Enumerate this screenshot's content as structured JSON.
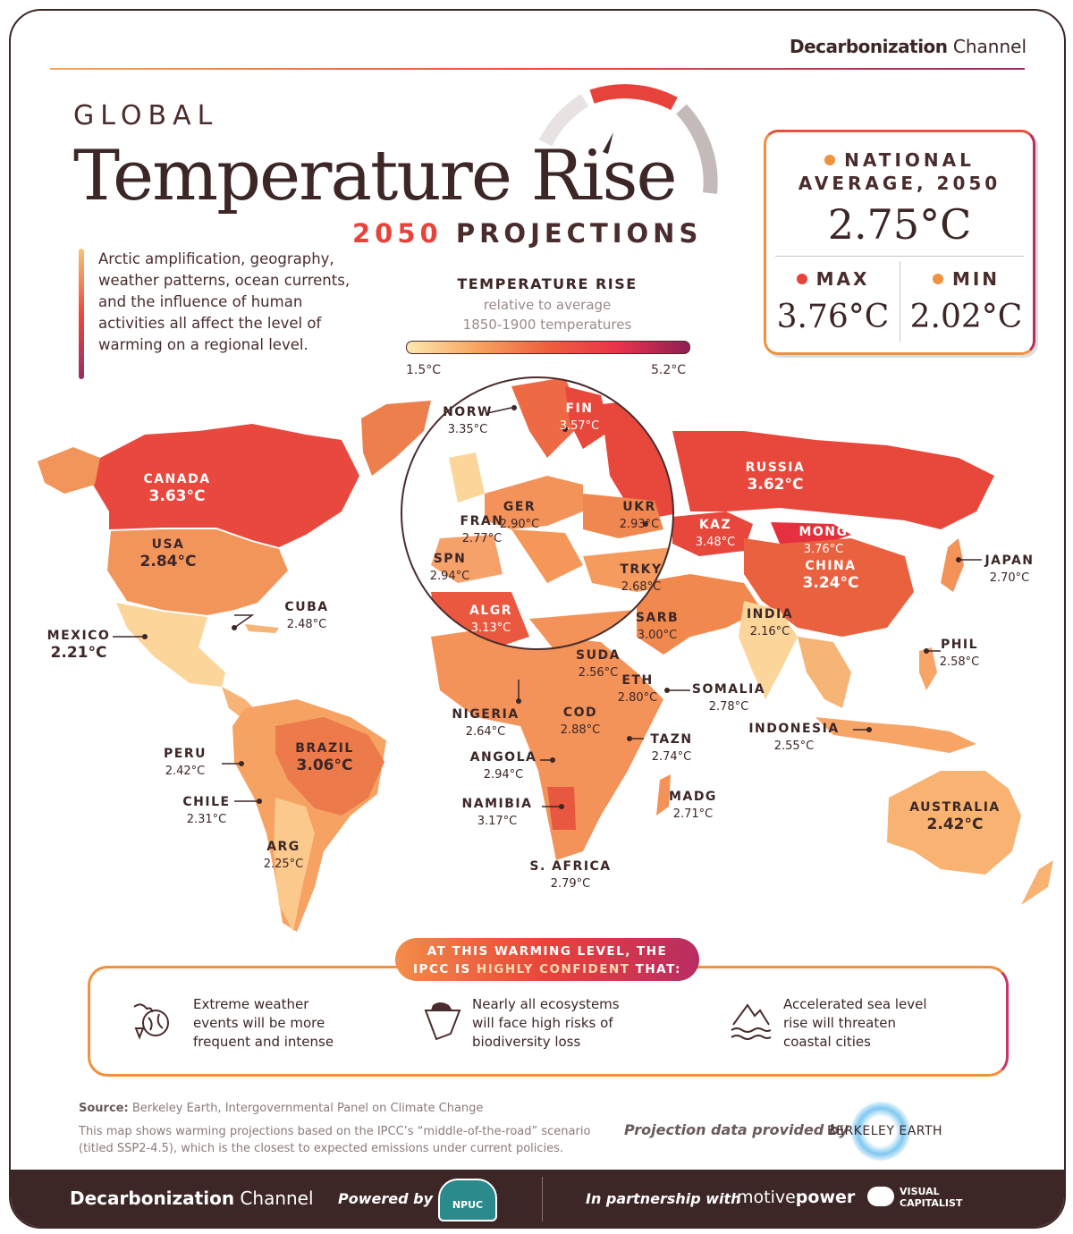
{
  "header": {
    "brand_bold": "Decarbonization",
    "brand_light": "Channel",
    "title_small": "GLOBAL",
    "title_main": "Temperature Rise",
    "subtitle_year": "2050",
    "subtitle_rest": "PROJECTIONS"
  },
  "intro": "Arctic amplification, geography, weather patterns, ocean currents, and the influence of human activities all affect the level of warming on a regional level.",
  "legend": {
    "title": "TEMPERATURE RISE",
    "subtitle_1": "relative to average",
    "subtitle_2": "1850-1900 temperatures",
    "min_label": "1.5°C",
    "max_label": "5.2°C",
    "scale_min": 1.5,
    "scale_max": 5.2,
    "colors": [
      "#fde8b0",
      "#f7a45f",
      "#ee5f3d",
      "#e8334a",
      "#8e1f55"
    ]
  },
  "stats": {
    "avg_label": "NATIONAL AVERAGE, 2050",
    "avg_value": "2.75°C",
    "max_label": "MAX",
    "max_value": "3.76°C",
    "min_label": "MIN",
    "min_value": "2.02°C",
    "avg_dot_color": "#f0913f",
    "max_dot_color": "#e8433a",
    "min_dot_color": "#f0913f"
  },
  "countries": [
    {
      "key": "canada",
      "name": "CANADA",
      "value": "3.63°C"
    },
    {
      "key": "usa",
      "name": "USA",
      "value": "2.84°C"
    },
    {
      "key": "mexico",
      "name": "MEXICO",
      "value": "2.21°C"
    },
    {
      "key": "cuba",
      "name": "CUBA",
      "value": "2.48°C"
    },
    {
      "key": "peru",
      "name": "PERU",
      "value": "2.42°C"
    },
    {
      "key": "brazil",
      "name": "BRAZIL",
      "value": "3.06°C"
    },
    {
      "key": "chile",
      "name": "CHILE",
      "value": "2.31°C"
    },
    {
      "key": "arg",
      "name": "ARG",
      "value": "2.25°C"
    },
    {
      "key": "norw",
      "name": "NORW",
      "value": "3.35°C"
    },
    {
      "key": "fin",
      "name": "FIN",
      "value": "3.57°C"
    },
    {
      "key": "ger",
      "name": "GER",
      "value": "2.90°C"
    },
    {
      "key": "fran",
      "name": "FRAN",
      "value": "2.77°C"
    },
    {
      "key": "ukr",
      "name": "UKR",
      "value": "2.93°C"
    },
    {
      "key": "spn",
      "name": "SPN",
      "value": "2.94°C"
    },
    {
      "key": "trky",
      "name": "TRKY",
      "value": "2.68°C"
    },
    {
      "key": "algr",
      "name": "ALGR",
      "value": "3.13°C"
    },
    {
      "key": "russia",
      "name": "RUSSIA",
      "value": "3.62°C"
    },
    {
      "key": "kaz",
      "name": "KAZ",
      "value": "3.48°C"
    },
    {
      "key": "mong",
      "name": "MONG",
      "value": "3.76°C"
    },
    {
      "key": "china",
      "name": "CHINA",
      "value": "3.24°C"
    },
    {
      "key": "japan",
      "name": "JAPAN",
      "value": "2.70°C"
    },
    {
      "key": "india",
      "name": "INDIA",
      "value": "2.16°C"
    },
    {
      "key": "sarb",
      "name": "SARB",
      "value": "3.00°C"
    },
    {
      "key": "phil",
      "name": "PHIL",
      "value": "2.58°C"
    },
    {
      "key": "suda",
      "name": "SUDA",
      "value": "2.56°C"
    },
    {
      "key": "eth",
      "name": "ETH",
      "value": "2.80°C"
    },
    {
      "key": "somalia",
      "name": "SOMALIA",
      "value": "2.78°C"
    },
    {
      "key": "nigeria",
      "name": "NIGERIA",
      "value": "2.64°C"
    },
    {
      "key": "cod",
      "name": "COD",
      "value": "2.88°C"
    },
    {
      "key": "tazn",
      "name": "TAZN",
      "value": "2.74°C"
    },
    {
      "key": "indonesia",
      "name": "INDONESIA",
      "value": "2.55°C"
    },
    {
      "key": "angola",
      "name": "ANGOLA",
      "value": "2.94°C"
    },
    {
      "key": "namibia",
      "name": "NAMIBIA",
      "value": "3.17°C"
    },
    {
      "key": "madg",
      "name": "MADG",
      "value": "2.71°C"
    },
    {
      "key": "australia",
      "name": "AUSTRALIA",
      "value": "2.42°C"
    },
    {
      "key": "safrica",
      "name": "S. AFRICA",
      "value": "2.79°C"
    }
  ],
  "ipcc": {
    "pill_line1": "AT THIS WARMING LEVEL, THE",
    "pill_line2a": "IPCC IS ",
    "pill_line2b": "HIGHLY CONFIDENT",
    "pill_line2c": " THAT:",
    "items": [
      {
        "icon": "storm-globe-icon",
        "text": "Extreme weather events will be more frequent and intense"
      },
      {
        "icon": "polar-bear-icon",
        "text": "Nearly all ecosystems will face high risks of biodiversity loss"
      },
      {
        "icon": "sea-level-icon",
        "text": "Accelerated sea level rise will threaten coastal cities"
      }
    ]
  },
  "source": {
    "label": "Source:",
    "text": "Berkeley Earth, Intergovernmental Panel on Climate Change",
    "note": "This map shows warming projections based on the IPCC’s “middle-of-the-road” scenario (titled SSP2-4.5), which is the closest to expected emissions under current policies.",
    "provided_by": "Projection data provided by",
    "provider": "BERKELEY EARTH"
  },
  "footer": {
    "brand_bold": "Decarbonization",
    "brand_light": "Channel",
    "powered_by": "Powered by",
    "npuc": "NPUC",
    "partnership": "In partnership with",
    "motive_light": "motive",
    "motive_bold": "power",
    "vc_line1": "VISUAL",
    "vc_line2": "CAPITALIST"
  }
}
